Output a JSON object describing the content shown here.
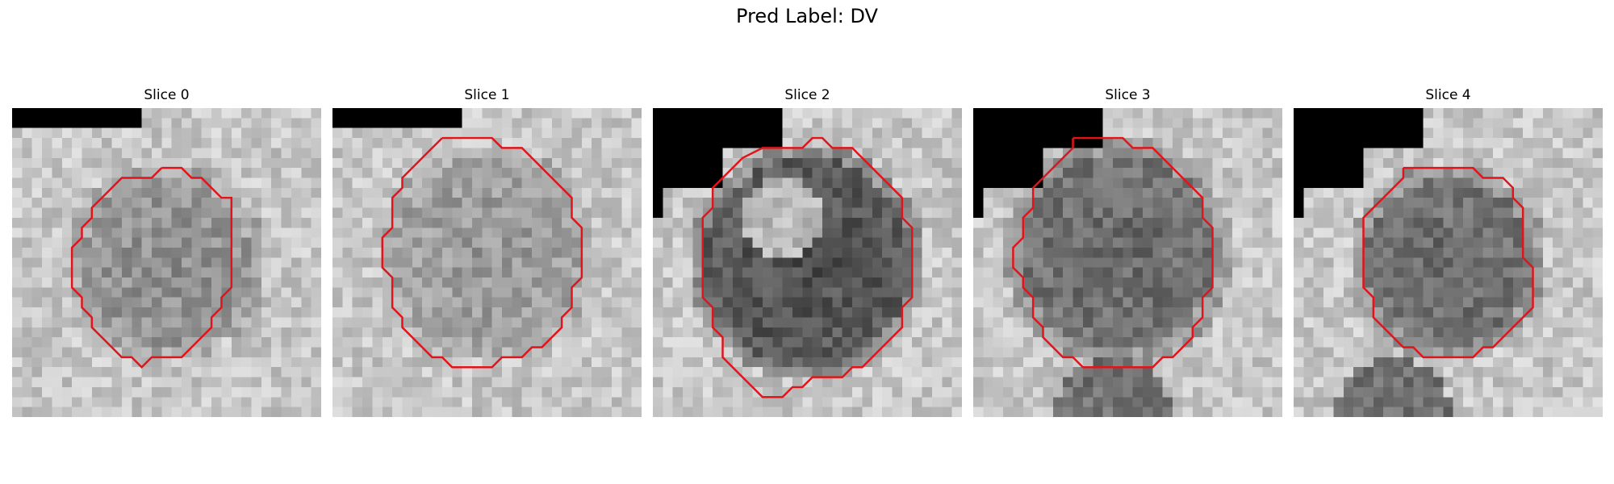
{
  "figure": {
    "suptitle": "Pred Label: DV"
  },
  "panels": [
    {
      "title": "Slice 0"
    },
    {
      "title": "Slice 1"
    },
    {
      "title": "Slice 2"
    },
    {
      "title": "Slice 3"
    },
    {
      "title": "Slice 4"
    }
  ],
  "style": {
    "contour_color": "#e0141a"
  }
}
